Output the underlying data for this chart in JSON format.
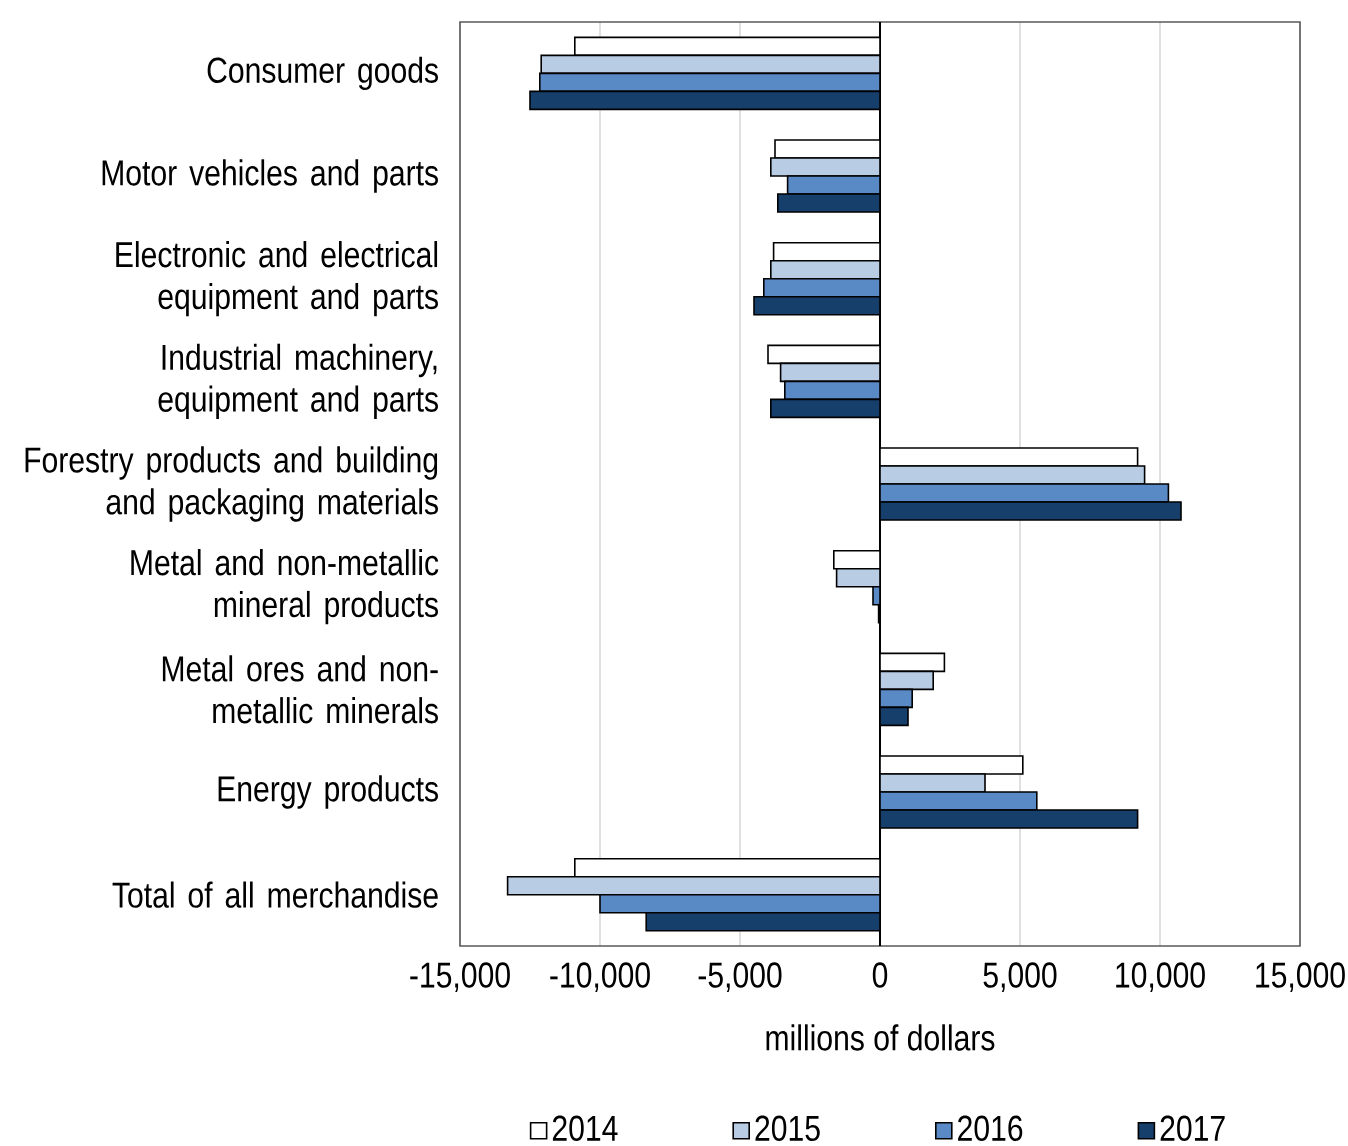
{
  "chart_data": {
    "type": "bar",
    "orientation": "horizontal",
    "categories": [
      "Consumer goods",
      "Motor vehicles and parts",
      "Electronic and electrical equipment and parts",
      "Industrial machinery, equipment and parts",
      "Forestry products and building and packaging materials",
      "Metal and non-metallic mineral products",
      "Metal ores and non-metallic minerals",
      "Energy products",
      "Total of all merchandise"
    ],
    "series": [
      {
        "name": "2014",
        "color": "#ffffff",
        "values": [
          -10900,
          -3750,
          -3800,
          -4000,
          9200,
          -1650,
          2300,
          5100,
          -10900
        ]
      },
      {
        "name": "2015",
        "color": "#b8cce4",
        "values": [
          -12100,
          -3900,
          -3900,
          -3550,
          9450,
          -1550,
          1900,
          3750,
          -13300
        ]
      },
      {
        "name": "2016",
        "color": "#5a8ac6",
        "values": [
          -12150,
          -3300,
          -4150,
          -3400,
          10300,
          -250,
          1150,
          5600,
          -10000
        ]
      },
      {
        "name": "2017",
        "color": "#173f6b",
        "values": [
          -12500,
          -3650,
          -4500,
          -3900,
          10750,
          -50,
          1000,
          9200,
          -8350
        ]
      }
    ],
    "xlabel": "millions of dollars",
    "xlim": [
      -15000,
      15000
    ],
    "xticks": [
      {
        "value": -15000,
        "label": "-15,000"
      },
      {
        "value": -10000,
        "label": "-10,000"
      },
      {
        "value": -5000,
        "label": "-5,000"
      },
      0,
      {
        "value": 5000,
        "label": "5,000"
      },
      {
        "value": 10000,
        "label": "10,000"
      },
      {
        "value": 15000,
        "label": "15,000"
      }
    ],
    "grid": "x",
    "legend": "bottom"
  }
}
